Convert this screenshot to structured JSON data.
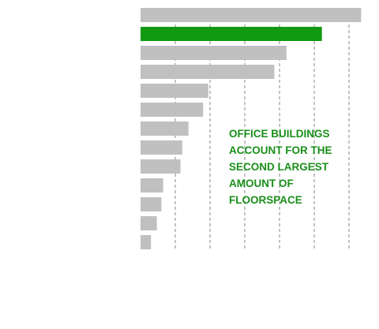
{
  "chart_data": {
    "type": "bar",
    "orientation": "horizontal",
    "title": "",
    "xlabel": "",
    "ylabel": "",
    "grid": true,
    "xlim": [
      0,
      6.4
    ],
    "categories": [
      "",
      "",
      "",
      "",
      "",
      "",
      "",
      "",
      "",
      "",
      "",
      "",
      ""
    ],
    "values": [
      6.35,
      5.22,
      4.2,
      3.85,
      1.95,
      1.8,
      1.38,
      1.2,
      1.15,
      0.65,
      0.6,
      0.47,
      0.3
    ],
    "highlight_index": 1,
    "colors": {
      "bar": "#c0c0c0",
      "highlight": "#119911",
      "grid": "#888888"
    },
    "annotation": "OFFICE BUILDINGS\nACCOUNT FOR THE\nSECOND LARGEST\nAMOUNT OF\nFLOORSPACE"
  }
}
